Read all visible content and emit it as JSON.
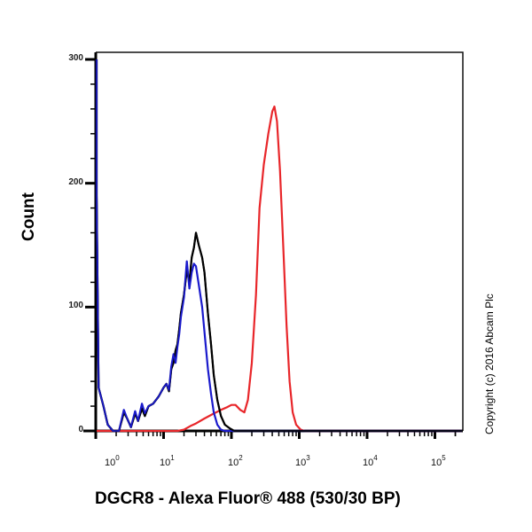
{
  "chart_data": {
    "type": "line",
    "title": "",
    "xlabel": "DGCR8 - Alexa Fluor® 488 (530/30 BP)",
    "ylabel": "Count",
    "x_scale": "log",
    "xlim": [
      1,
      250000
    ],
    "ylim": [
      0,
      300
    ],
    "grid": false,
    "legend": "none",
    "annotations": [
      "Copyright (c) 2016 Abcam Plc"
    ],
    "yticks": [
      0,
      100,
      200,
      300
    ],
    "xticks": [
      "10^0",
      "10^1",
      "10^2",
      "10^3",
      "10^4",
      "10^5"
    ],
    "series": [
      {
        "name": "black",
        "color": "#000000",
        "description": "Unlabelled / isotype-like control, peak ~160 counts near 10^1.6",
        "points": [
          [
            0.9,
            300
          ],
          [
            1.0,
            190
          ],
          [
            1.1,
            35
          ],
          [
            1.3,
            20
          ],
          [
            1.5,
            5
          ],
          [
            1.8,
            0
          ],
          [
            2.2,
            0
          ],
          [
            2.6,
            15
          ],
          [
            2.9,
            10
          ],
          [
            3.3,
            3
          ],
          [
            3.8,
            14
          ],
          [
            4.2,
            8
          ],
          [
            4.8,
            18
          ],
          [
            5.3,
            12
          ],
          [
            6.0,
            20
          ],
          [
            7.0,
            22
          ],
          [
            8.5,
            28
          ],
          [
            10,
            35
          ],
          [
            11,
            38
          ],
          [
            12,
            32
          ],
          [
            13,
            50
          ],
          [
            14,
            55
          ],
          [
            15,
            65
          ],
          [
            16,
            70
          ],
          [
            17,
            82
          ],
          [
            18,
            95
          ],
          [
            20,
            110
          ],
          [
            22,
            130
          ],
          [
            24,
            120
          ],
          [
            26,
            140
          ],
          [
            28,
            148
          ],
          [
            30,
            160
          ],
          [
            33,
            150
          ],
          [
            37,
            140
          ],
          [
            40,
            128
          ],
          [
            45,
            95
          ],
          [
            50,
            70
          ],
          [
            55,
            45
          ],
          [
            62,
            25
          ],
          [
            70,
            12
          ],
          [
            80,
            5
          ],
          [
            95,
            2
          ],
          [
            110,
            0
          ],
          [
            250000,
            0
          ]
        ]
      },
      {
        "name": "blue",
        "color": "#1a1acc",
        "description": "Second control, peak ~135 counts",
        "points": [
          [
            0.9,
            300
          ],
          [
            1.0,
            190
          ],
          [
            1.1,
            35
          ],
          [
            1.3,
            20
          ],
          [
            1.5,
            5
          ],
          [
            1.8,
            0
          ],
          [
            2.2,
            0
          ],
          [
            2.6,
            17
          ],
          [
            2.9,
            10
          ],
          [
            3.3,
            3
          ],
          [
            3.8,
            16
          ],
          [
            4.2,
            8
          ],
          [
            4.8,
            22
          ],
          [
            5.3,
            14
          ],
          [
            6.0,
            20
          ],
          [
            7.0,
            22
          ],
          [
            8.5,
            28
          ],
          [
            10,
            35
          ],
          [
            11,
            38
          ],
          [
            12,
            33
          ],
          [
            13,
            52
          ],
          [
            14,
            62
          ],
          [
            15,
            55
          ],
          [
            16,
            68
          ],
          [
            17,
            78
          ],
          [
            18,
            92
          ],
          [
            20,
            108
          ],
          [
            22,
            137
          ],
          [
            24,
            115
          ],
          [
            26,
            128
          ],
          [
            28,
            135
          ],
          [
            30,
            133
          ],
          [
            33,
            118
          ],
          [
            37,
            100
          ],
          [
            40,
            80
          ],
          [
            45,
            50
          ],
          [
            50,
            30
          ],
          [
            55,
            15
          ],
          [
            62,
            5
          ],
          [
            70,
            1
          ],
          [
            80,
            0
          ],
          [
            250000,
            0
          ]
        ]
      },
      {
        "name": "red",
        "color": "#e8262a",
        "description": "DGCR8 stained sample, peak ~262 counts near 10^2.7",
        "points": [
          [
            0.9,
            0
          ],
          [
            16,
            0
          ],
          [
            20,
            1
          ],
          [
            25,
            4
          ],
          [
            30,
            6
          ],
          [
            40,
            10
          ],
          [
            55,
            14
          ],
          [
            70,
            17
          ],
          [
            85,
            19
          ],
          [
            100,
            21
          ],
          [
            115,
            21
          ],
          [
            135,
            17
          ],
          [
            155,
            15
          ],
          [
            175,
            25
          ],
          [
            200,
            55
          ],
          [
            230,
            110
          ],
          [
            260,
            180
          ],
          [
            300,
            215
          ],
          [
            350,
            240
          ],
          [
            400,
            258
          ],
          [
            430,
            262
          ],
          [
            470,
            250
          ],
          [
            520,
            210
          ],
          [
            580,
            150
          ],
          [
            650,
            85
          ],
          [
            720,
            40
          ],
          [
            800,
            15
          ],
          [
            900,
            5
          ],
          [
            1050,
            1
          ],
          [
            1200,
            0
          ],
          [
            250000,
            0
          ]
        ]
      }
    ]
  },
  "labels": {
    "ylabel": "Count",
    "xlabel": "DGCR8 - Alexa Fluor® 488 (530/30 BP)",
    "copyright": "Copyright (c) 2016 Abcam Plc"
  },
  "yticks": [
    {
      "label": "300",
      "value": 300
    },
    {
      "label": "200",
      "value": 200
    },
    {
      "label": "100",
      "value": 100
    },
    {
      "label": "0",
      "value": 0
    }
  ],
  "xticks": [
    {
      "base": "10",
      "exp": "0"
    },
    {
      "base": "10",
      "exp": "1"
    },
    {
      "base": "10",
      "exp": "2"
    },
    {
      "base": "10",
      "exp": "3"
    },
    {
      "base": "10",
      "exp": "4"
    },
    {
      "base": "10",
      "exp": "5"
    }
  ]
}
